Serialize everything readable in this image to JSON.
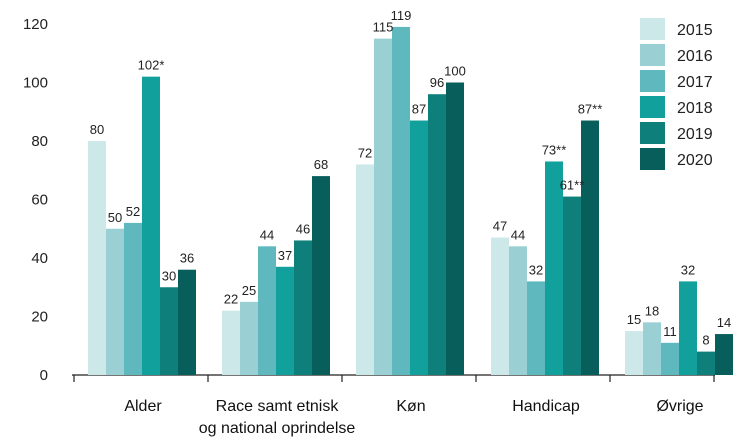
{
  "chart_data": {
    "type": "bar",
    "categories": [
      "Alder",
      "Race samt etnisk\nog national oprindelse",
      "Køn",
      "Handicap",
      "Øvrige"
    ],
    "series": [
      {
        "name": "2015",
        "color": "#cde8e8",
        "values": [
          80,
          22,
          72,
          47,
          15
        ],
        "labels": [
          "80",
          "22",
          "72",
          "47",
          "15"
        ]
      },
      {
        "name": "2016",
        "color": "#9acfd3",
        "values": [
          50,
          25,
          115,
          44,
          18
        ],
        "labels": [
          "50",
          "25",
          "115",
          "44",
          "18"
        ]
      },
      {
        "name": "2017",
        "color": "#5fb8be",
        "values": [
          52,
          44,
          119,
          32,
          11
        ],
        "labels": [
          "52",
          "44",
          "119",
          "32",
          "11"
        ]
      },
      {
        "name": "2018",
        "color": "#12a09c",
        "values": [
          102,
          37,
          87,
          73,
          32
        ],
        "labels": [
          "102*",
          "37",
          "87",
          "73**",
          "32"
        ]
      },
      {
        "name": "2019",
        "color": "#0f7f7b",
        "values": [
          30,
          46,
          96,
          61,
          8
        ],
        "labels": [
          "30",
          "46",
          "96",
          "61**",
          "8"
        ]
      },
      {
        "name": "2020",
        "color": "#075e5a",
        "values": [
          36,
          68,
          100,
          87,
          14
        ],
        "labels": [
          "36",
          "68",
          "100",
          "87**",
          "14"
        ]
      }
    ],
    "yticks": [
      0,
      20,
      40,
      60,
      80,
      100,
      120
    ],
    "ylim": [
      0,
      120
    ],
    "grid": false,
    "legend": "top-right"
  }
}
